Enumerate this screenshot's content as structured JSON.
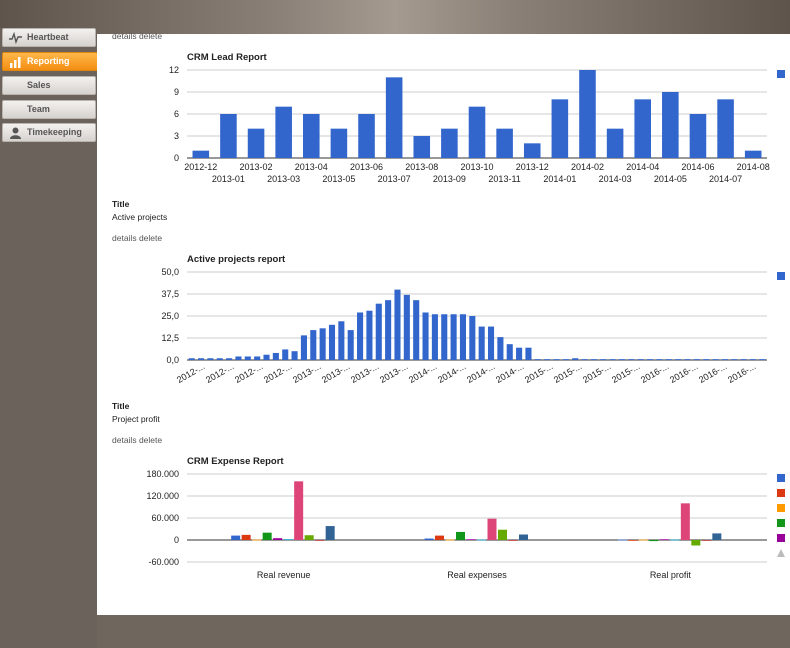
{
  "sidebar": {
    "items": [
      {
        "label": "Heartbeat",
        "icon": "heartbeat-icon"
      },
      {
        "label": "Reporting",
        "icon": "bar-chart-icon"
      },
      {
        "label": "Sales",
        "icon": ""
      },
      {
        "label": "Team",
        "icon": ""
      },
      {
        "label": "Timekeeping",
        "icon": "person-icon"
      }
    ]
  },
  "reports": [
    {
      "links": {
        "details": "details",
        "delete": "delete"
      },
      "title_label": "",
      "title_value": ""
    },
    {
      "links": {
        "details": "details",
        "delete": "delete"
      },
      "title_label": "Title",
      "title_value": "Active projects"
    },
    {
      "links": {
        "details": "details",
        "delete": "delete"
      },
      "title_label": "Title",
      "title_value": "Project profit"
    }
  ],
  "chart_data": [
    {
      "type": "bar",
      "title": "CRM Lead Report",
      "categories": [
        "2012-12",
        "2013-01",
        "2013-02",
        "2013-03",
        "2013-04",
        "2013-05",
        "2013-06",
        "2013-07",
        "2013-08",
        "2013-09",
        "2013-10",
        "2013-11",
        "2013-12",
        "2014-01",
        "2014-02",
        "2014-03",
        "2014-04",
        "2014-05",
        "2014-06",
        "2014-07",
        "2014-08"
      ],
      "values": [
        1,
        6,
        4,
        7,
        6,
        4,
        6,
        11,
        3,
        4,
        7,
        4,
        2,
        8,
        12,
        4,
        8,
        9,
        6,
        8,
        1
      ],
      "ylim": [
        0,
        12
      ],
      "yticks": [
        "0",
        "3",
        "6",
        "9",
        "12"
      ],
      "grid": true,
      "legend": "right",
      "colors": [
        "#3366cc"
      ]
    },
    {
      "type": "bar",
      "title": "Active projects report",
      "values": [
        1,
        1,
        1,
        1,
        1,
        2,
        2,
        2,
        3,
        4,
        6,
        5,
        14,
        17,
        18,
        20,
        22,
        17,
        27,
        28,
        32,
        34,
        40,
        37,
        34,
        27,
        26,
        26,
        26,
        26,
        25,
        19,
        19,
        13,
        9,
        7,
        7,
        0.5,
        0.5,
        0.5,
        0.5,
        1,
        0.5,
        0.5,
        0.5,
        0.5,
        0.5,
        0.5,
        0.5,
        0.5,
        0.5,
        0.5,
        0.5,
        0.5,
        0.5,
        0.5,
        0.5,
        0.5,
        0.5,
        0.5,
        0.5,
        0.5
      ],
      "xticklabels": [
        "2012-...",
        "2012-...",
        "2012-...",
        "2012-...",
        "2013-...",
        "2013-...",
        "2013-...",
        "2013-...",
        "2014-...",
        "2014-...",
        "2014-...",
        "2014-...",
        "2015-...",
        "2015-...",
        "2015-...",
        "2015-...",
        "2016-...",
        "2016-...",
        "2016-...",
        "2016-..."
      ],
      "ylim": [
        0,
        50
      ],
      "yticks": [
        "0,0",
        "12,5",
        "25,0",
        "37,5",
        "50,0"
      ],
      "grid": true,
      "legend": "right",
      "colors": [
        "#3366cc"
      ]
    },
    {
      "type": "bar",
      "title": "CRM Expense Report",
      "categories": [
        "Real revenue",
        "Real expenses",
        "Real profit"
      ],
      "series": [
        {
          "values": [
            12000,
            4000,
            1000
          ],
          "color": "#3366cc"
        },
        {
          "values": [
            14000,
            12000,
            -1000
          ],
          "color": "#dc3912"
        },
        {
          "values": [
            1000,
            1000,
            1000
          ],
          "color": "#ff9900"
        },
        {
          "values": [
            20000,
            22000,
            -3000
          ],
          "color": "#109618"
        },
        {
          "values": [
            5000,
            2000,
            2000
          ],
          "color": "#990099"
        },
        {
          "values": [
            2000,
            1000,
            1000
          ],
          "color": "#0099c6"
        },
        {
          "values": [
            160000,
            58000,
            100000
          ],
          "color": "#dd4477"
        },
        {
          "values": [
            13000,
            28000,
            -15000
          ],
          "color": "#66aa00"
        },
        {
          "values": [
            0,
            0,
            0
          ],
          "color": "#b82e2e"
        },
        {
          "values": [
            38000,
            15000,
            18000
          ],
          "color": "#316395"
        }
      ],
      "ylim": [
        -60000,
        180000
      ],
      "yticks": [
        "-60.000",
        "0",
        "60.000",
        "120.000",
        "180.000"
      ],
      "grid": true,
      "legend": "right",
      "legend_colors": [
        "#3366cc",
        "#dc3912",
        "#ff9900",
        "#109618",
        "#990099"
      ]
    }
  ]
}
